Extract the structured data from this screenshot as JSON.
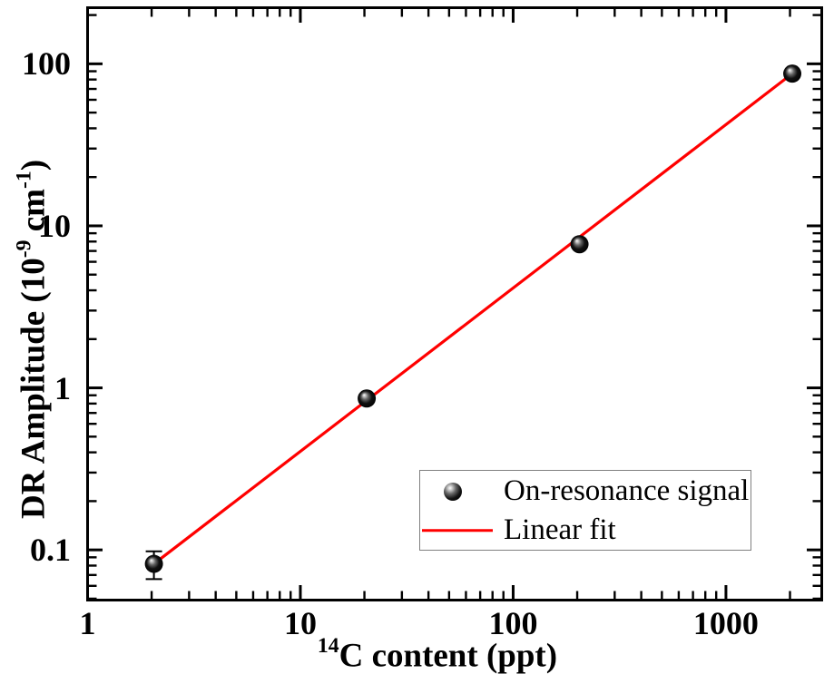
{
  "chart_data": {
    "type": "scatter",
    "title": "",
    "x_scale": "log",
    "y_scale": "log",
    "xlim": [
      1,
      2820
    ],
    "ylim": [
      0.049,
      222
    ],
    "grid": false,
    "xlabel": {
      "superscript": "14",
      "text": "C content (ppt)"
    },
    "ylabel": {
      "part1": "DR Amplitude (10",
      "sup1": "-9",
      "part2": " cm",
      "sup2": "-1",
      "part3": ")"
    },
    "x_ticks": [
      {
        "value": 1,
        "label": "1"
      },
      {
        "value": 10,
        "label": "10"
      },
      {
        "value": 100,
        "label": "100"
      },
      {
        "value": 1000,
        "label": "1000"
      }
    ],
    "y_ticks": [
      {
        "value": 0.1,
        "label": "0.1"
      },
      {
        "value": 1,
        "label": "1"
      },
      {
        "value": 10,
        "label": "10"
      },
      {
        "value": 100,
        "label": "100"
      }
    ],
    "series": [
      {
        "name": "On-resonance signal",
        "type": "scatter",
        "marker": "sphere",
        "color": "#000000",
        "points": [
          {
            "x": 2.05,
            "y": 0.082,
            "yerr": 0.016
          },
          {
            "x": 20.5,
            "y": 0.86
          },
          {
            "x": 205,
            "y": 7.7
          },
          {
            "x": 2050,
            "y": 87
          }
        ]
      },
      {
        "name": "Linear fit",
        "type": "line",
        "color": "#ff0000",
        "endpoints": [
          {
            "x": 2.05,
            "y": 0.082
          },
          {
            "x": 2050,
            "y": 87
          }
        ]
      }
    ],
    "legend": {
      "position": "lower-right",
      "entries": [
        {
          "marker": "sphere",
          "label": "On-resonance signal"
        },
        {
          "marker": "line",
          "color": "#ff0000",
          "label": "Linear fit"
        }
      ]
    }
  },
  "colors": {
    "background": "#ffffff",
    "axis": "#000000",
    "text": "#000000",
    "fit_line": "#ff0000",
    "marker": "#000000",
    "legend_border": "#808080"
  }
}
